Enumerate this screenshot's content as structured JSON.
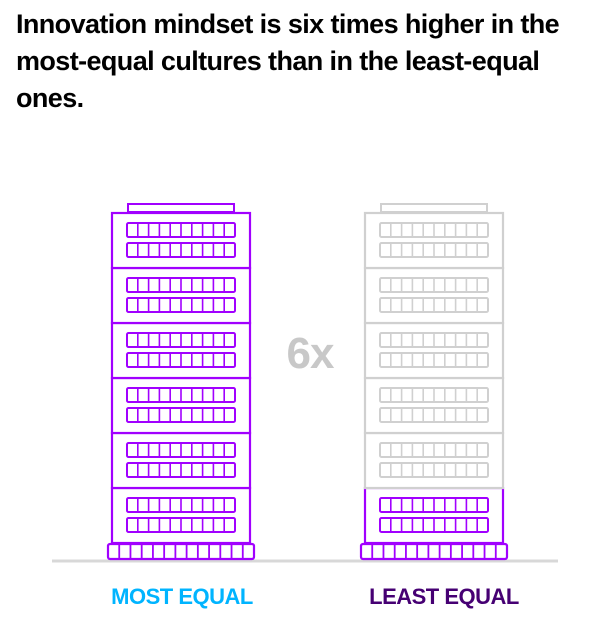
{
  "title": "Innovation mindset is six times higher in the most-equal cultures than in the least-equal ones.",
  "chart_data": {
    "type": "bar",
    "title": "Innovation mindset is six times higher in the most-equal cultures than in the least-equal ones.",
    "categories": [
      "MOST EQUAL",
      "LEAST EQUAL"
    ],
    "values": [
      6,
      1
    ],
    "max_units": 6,
    "annotation": "6x",
    "colors": {
      "most_equal_fill": "#a100ff",
      "most_equal_label": "#00b4ff",
      "least_equal_fill": "#a100ff",
      "least_equal_label": "#460073",
      "inactive": "#d0d0d0",
      "annotation": "#c8c8c8",
      "baseline": "#d8d8d8"
    },
    "xlabel": "",
    "ylabel": ""
  }
}
